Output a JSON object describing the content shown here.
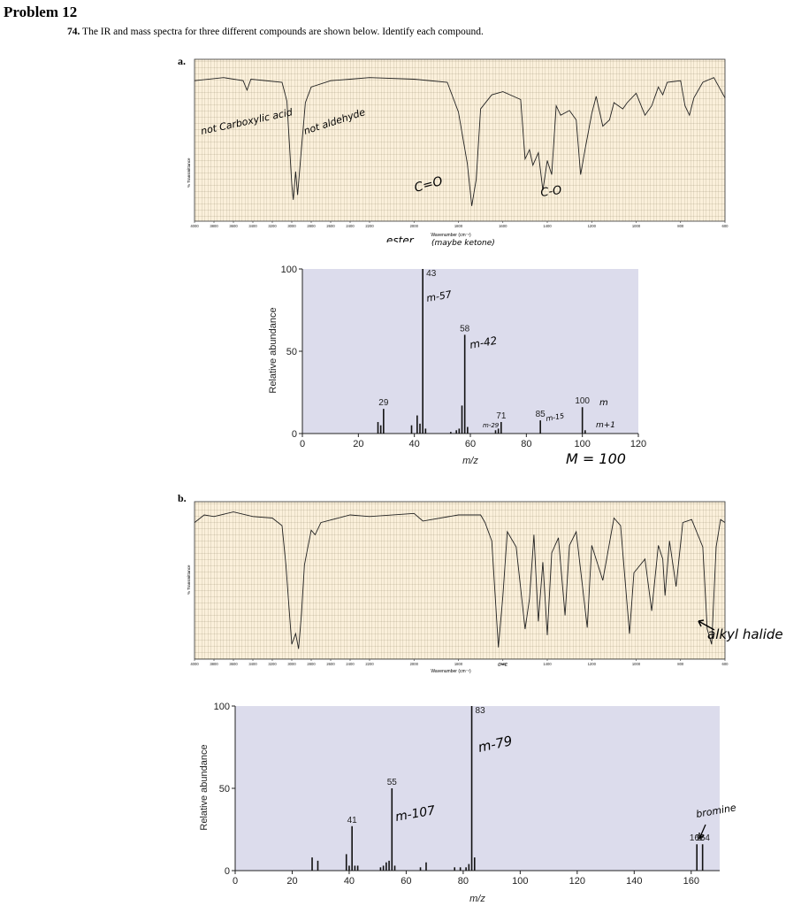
{
  "header": {
    "problem": "Problem 12",
    "number": "74.",
    "question": "The IR and mass spectra for three different compounds are shown below. Identify each compound."
  },
  "parts": [
    {
      "label": "a."
    },
    {
      "label": "b."
    }
  ],
  "chart_data": [
    {
      "id": "ir-a",
      "type": "line",
      "ylabel": "% Transmittance",
      "xlabel": "Wavenumber (cm⁻¹)",
      "x_ticks": [
        4000,
        3800,
        3600,
        3400,
        3200,
        3000,
        2800,
        2600,
        2400,
        2200,
        2000,
        1800,
        1600,
        1400,
        1200,
        1000,
        800,
        600
      ],
      "x_tick_labels": [
        "4000",
        "3800",
        "3600",
        "3400",
        "3200",
        "3000",
        "2800",
        "2600",
        "2400",
        "2200",
        "2000",
        "1800",
        "1600",
        "1400",
        "1200",
        "1000",
        "800",
        "600"
      ],
      "spectrum": [
        [
          4000,
          12
        ],
        [
          3700,
          10
        ],
        [
          3500,
          12
        ],
        [
          3460,
          18
        ],
        [
          3420,
          11
        ],
        [
          3100,
          13
        ],
        [
          3050,
          25
        ],
        [
          3000,
          78
        ],
        [
          2985,
          88
        ],
        [
          2960,
          70
        ],
        [
          2940,
          85
        ],
        [
          2900,
          55
        ],
        [
          2860,
          26
        ],
        [
          2800,
          16
        ],
        [
          2600,
          12
        ],
        [
          2400,
          11
        ],
        [
          2200,
          10
        ],
        [
          2000,
          11
        ],
        [
          1850,
          13
        ],
        [
          1800,
          32
        ],
        [
          1760,
          65
        ],
        [
          1740,
          92
        ],
        [
          1720,
          75
        ],
        [
          1700,
          30
        ],
        [
          1650,
          21
        ],
        [
          1600,
          19
        ],
        [
          1520,
          24
        ],
        [
          1500,
          62
        ],
        [
          1480,
          56
        ],
        [
          1465,
          66
        ],
        [
          1440,
          58
        ],
        [
          1420,
          82
        ],
        [
          1400,
          63
        ],
        [
          1380,
          72
        ],
        [
          1360,
          28
        ],
        [
          1340,
          34
        ],
        [
          1300,
          31
        ],
        [
          1270,
          37
        ],
        [
          1250,
          72
        ],
        [
          1230,
          56
        ],
        [
          1200,
          33
        ],
        [
          1180,
          22
        ],
        [
          1150,
          41
        ],
        [
          1120,
          37
        ],
        [
          1100,
          26
        ],
        [
          1060,
          30
        ],
        [
          1040,
          26
        ],
        [
          1000,
          20
        ],
        [
          960,
          34
        ],
        [
          930,
          28
        ],
        [
          900,
          16
        ],
        [
          880,
          21
        ],
        [
          860,
          13
        ],
        [
          800,
          12
        ],
        [
          780,
          28
        ],
        [
          760,
          34
        ],
        [
          740,
          23
        ],
        [
          700,
          13
        ],
        [
          650,
          10
        ],
        [
          600,
          23
        ]
      ],
      "annotations": [
        "not Carboxylic acid",
        "not aldehyde",
        "C=O",
        "C-O",
        "ester",
        "(maybe ketone)"
      ]
    },
    {
      "id": "ms-a",
      "type": "bar",
      "xlabel": "m/z",
      "ylabel": "Relative abundance",
      "xlim": [
        0,
        120
      ],
      "ylim": [
        0,
        100
      ],
      "x_ticks": [
        0,
        20,
        40,
        60,
        80,
        100,
        120
      ],
      "y_ticks": [
        0,
        50,
        100
      ],
      "peaks": [
        [
          27,
          7
        ],
        [
          28,
          5
        ],
        [
          29,
          15
        ],
        [
          39,
          5
        ],
        [
          41,
          11
        ],
        [
          42,
          6
        ],
        [
          43,
          100
        ],
        [
          44,
          3
        ],
        [
          53,
          1
        ],
        [
          55,
          2
        ],
        [
          56,
          3
        ],
        [
          57,
          17
        ],
        [
          58,
          60
        ],
        [
          59,
          4
        ],
        [
          69,
          2
        ],
        [
          70,
          3
        ],
        [
          71,
          7
        ],
        [
          85,
          8
        ],
        [
          100,
          16
        ],
        [
          101,
          2
        ]
      ],
      "peak_labels": [
        {
          "mz": 29,
          "text": "29"
        },
        {
          "mz": 43,
          "text": "43"
        },
        {
          "mz": 58,
          "text": "58"
        },
        {
          "mz": 71,
          "text": "71"
        },
        {
          "mz": 85,
          "text": "85"
        },
        {
          "mz": 100,
          "text": "100"
        }
      ],
      "annotations": [
        "m-57",
        "m-42",
        "m-29",
        "m-15",
        "m",
        "m+1",
        "M = 100"
      ]
    },
    {
      "id": "ir-b",
      "type": "line",
      "ylabel": "% Transmittance",
      "xlabel": "Wavenumber (cm⁻¹)",
      "x_ticks": [
        4000,
        3800,
        3600,
        3400,
        3200,
        3000,
        2800,
        2600,
        2400,
        2200,
        2000,
        1800,
        1600,
        1400,
        1200,
        1000,
        800,
        600
      ],
      "x_tick_labels": [
        "4000",
        "3800",
        "3600",
        "3400",
        "3200",
        "3000",
        "2800",
        "2600",
        "2400",
        "2200",
        "2000",
        "1800",
        "1600",
        "1400",
        "1200",
        "1000",
        "800",
        "600"
      ],
      "spectrum": [
        [
          4000,
          12
        ],
        [
          3900,
          7
        ],
        [
          3800,
          8
        ],
        [
          3600,
          5
        ],
        [
          3400,
          8
        ],
        [
          3200,
          9
        ],
        [
          3100,
          14
        ],
        [
          3060,
          40
        ],
        [
          3020,
          75
        ],
        [
          3000,
          92
        ],
        [
          2960,
          85
        ],
        [
          2930,
          95
        ],
        [
          2900,
          72
        ],
        [
          2870,
          40
        ],
        [
          2840,
          30
        ],
        [
          2800,
          17
        ],
        [
          2760,
          20
        ],
        [
          2700,
          12
        ],
        [
          2400,
          7
        ],
        [
          2200,
          8
        ],
        [
          2000,
          6
        ],
        [
          1960,
          11
        ],
        [
          1800,
          7
        ],
        [
          1700,
          7
        ],
        [
          1680,
          12
        ],
        [
          1650,
          24
        ],
        [
          1620,
          94
        ],
        [
          1600,
          60
        ],
        [
          1580,
          18
        ],
        [
          1540,
          28
        ],
        [
          1500,
          82
        ],
        [
          1480,
          62
        ],
        [
          1460,
          20
        ],
        [
          1440,
          77
        ],
        [
          1420,
          38
        ],
        [
          1400,
          86
        ],
        [
          1380,
          32
        ],
        [
          1350,
          22
        ],
        [
          1320,
          73
        ],
        [
          1300,
          27
        ],
        [
          1270,
          18
        ],
        [
          1220,
          81
        ],
        [
          1200,
          27
        ],
        [
          1150,
          50
        ],
        [
          1100,
          9
        ],
        [
          1070,
          14
        ],
        [
          1030,
          85
        ],
        [
          1010,
          45
        ],
        [
          960,
          36
        ],
        [
          930,
          70
        ],
        [
          900,
          27
        ],
        [
          880,
          36
        ],
        [
          870,
          60
        ],
        [
          850,
          24
        ],
        [
          820,
          54
        ],
        [
          790,
          12
        ],
        [
          750,
          10
        ],
        [
          700,
          28
        ],
        [
          680,
          82
        ],
        [
          660,
          92
        ],
        [
          640,
          28
        ],
        [
          620,
          10
        ],
        [
          600,
          12
        ]
      ],
      "annotations": [
        "alkyl halide",
        "C=C"
      ]
    },
    {
      "id": "ms-b",
      "type": "bar",
      "xlabel": "m/z",
      "ylabel": "Relative abundance",
      "xlim": [
        0,
        170
      ],
      "ylim": [
        0,
        100
      ],
      "x_ticks": [
        0,
        20,
        40,
        60,
        80,
        100,
        120,
        140,
        160
      ],
      "y_ticks": [
        0,
        50,
        100
      ],
      "peaks": [
        [
          27,
          8
        ],
        [
          29,
          6
        ],
        [
          39,
          10
        ],
        [
          40,
          3
        ],
        [
          41,
          27
        ],
        [
          42,
          3
        ],
        [
          43,
          3
        ],
        [
          51,
          2
        ],
        [
          52,
          3
        ],
        [
          53,
          5
        ],
        [
          54,
          6
        ],
        [
          55,
          50
        ],
        [
          56,
          3
        ],
        [
          65,
          2
        ],
        [
          67,
          5
        ],
        [
          77,
          2
        ],
        [
          79,
          2
        ],
        [
          81,
          2
        ],
        [
          82,
          4
        ],
        [
          83,
          100
        ],
        [
          84,
          8
        ],
        [
          162,
          16
        ],
        [
          164,
          16
        ]
      ],
      "peak_labels": [
        {
          "mz": 41,
          "text": "41"
        },
        {
          "mz": 55,
          "text": "55"
        },
        {
          "mz": 83,
          "text": "83"
        },
        {
          "mz": 162,
          "text": "162"
        },
        {
          "mz": 164,
          "text": "164"
        }
      ],
      "annotations": [
        "m-79",
        "m-107",
        "bromine"
      ]
    }
  ]
}
